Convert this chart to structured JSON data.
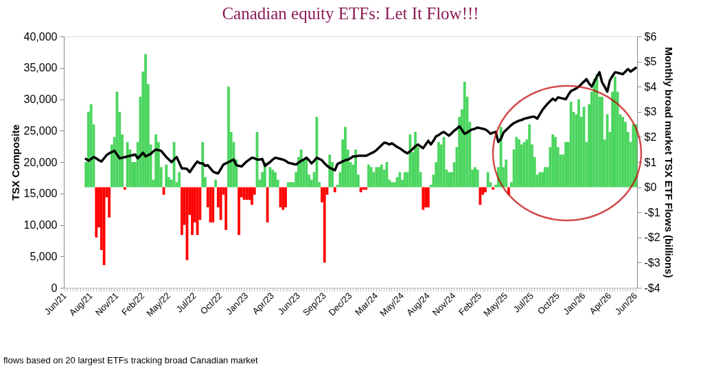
{
  "chart_data": {
    "type": "bar",
    "title": "Canadian equity ETFs:  Let It Flow!!!",
    "ylabel": "TSX Composite",
    "y2label": "Monthly broad market TSX ETF Flows (billions)",
    "annotations": [
      "flows based on 20 largest ETFs tracking broad Canadian market"
    ],
    "categories": [
      "Jun/21",
      null,
      null,
      null,
      null,
      null,
      null,
      null,
      null,
      null,
      "Aug/21",
      null,
      null,
      null,
      null,
      null,
      null,
      null,
      null,
      null,
      "Nov/21",
      null,
      null,
      null,
      null,
      null,
      null,
      null,
      null,
      null,
      "Feb/22",
      null,
      null,
      null,
      null,
      null,
      null,
      null,
      null,
      null,
      "May/22",
      null,
      null,
      null,
      null,
      null,
      null,
      null,
      null,
      null,
      "Jul/22",
      null,
      null,
      null,
      null,
      null,
      null,
      null,
      null,
      null,
      "Oct/22",
      null,
      null,
      null,
      null,
      null,
      null,
      null,
      null,
      null,
      "Jan/23",
      null,
      null,
      null,
      null,
      null,
      null,
      null,
      null,
      null,
      "Apr/23",
      null,
      null,
      null,
      null,
      null,
      null,
      null,
      null,
      null,
      "Jun/23",
      null,
      null,
      null,
      null,
      null,
      null,
      null,
      null,
      null,
      "Sep/23",
      null,
      null,
      null,
      null,
      null,
      null,
      null,
      null,
      null,
      "Dec/23",
      null,
      null,
      null,
      null,
      null,
      null,
      null,
      null,
      null,
      "Mar/24",
      null,
      null,
      null,
      null,
      null,
      null,
      null,
      null,
      null,
      "May/24",
      null,
      null,
      null,
      null,
      null,
      null,
      null,
      null,
      null,
      "Aug/24",
      null,
      null,
      null,
      null,
      null,
      null,
      null,
      null,
      null,
      "Nov/24",
      null,
      null,
      null,
      null,
      null,
      null,
      null,
      null,
      null,
      "Feb/25",
      null,
      null,
      null,
      null,
      null,
      null,
      null,
      null,
      null,
      "May/25",
      null,
      null,
      null,
      null,
      null,
      null,
      null,
      null,
      null,
      "Jul/25",
      null,
      null,
      null,
      null,
      null,
      null,
      null,
      null,
      null,
      "Oct/25",
      null,
      null,
      null,
      null,
      null,
      null,
      null,
      null,
      null,
      "Jan/26",
      null,
      null,
      null,
      null,
      null,
      null,
      null,
      null,
      null,
      "Apr/26",
      null,
      null,
      null,
      null,
      null,
      null,
      null,
      null,
      null,
      "Jun/26"
    ],
    "ylim": [
      0,
      40000
    ],
    "yticks": [
      0,
      {
        "value": 5000,
        "label": "5,000"
      },
      {
        "value": 10000,
        "label": "10,000"
      },
      {
        "value": 15000,
        "label": "15,000"
      },
      {
        "value": 20000,
        "label": "20,000"
      },
      {
        "value": 25000,
        "label": "25,000"
      },
      {
        "value": 30000,
        "label": "30,000"
      },
      {
        "value": 35000,
        "label": "35,000"
      },
      {
        "value": 40000,
        "label": "40,000"
      }
    ],
    "y2lim": [
      -4,
      6
    ],
    "y2ticks": [
      {
        "value": -4,
        "label": "-$4"
      },
      {
        "value": -3,
        "label": "-$3"
      },
      {
        "value": -2,
        "label": "-$2"
      },
      {
        "value": -1,
        "label": "-$1"
      },
      {
        "value": 0,
        "label": "$0"
      },
      {
        "value": 1,
        "label": "$1"
      },
      {
        "value": 2,
        "label": "$2"
      },
      {
        "value": 3,
        "label": "$3"
      },
      {
        "value": 4,
        "label": "$4"
      },
      {
        "value": 5,
        "label": "$5"
      },
      {
        "value": 6,
        "label": "$6"
      }
    ],
    "legend": false,
    "series": [
      {
        "axis": "y2",
        "color": "#4bd55f",
        "values": [
          null,
          null,
          null,
          null,
          null,
          null,
          null,
          null,
          1.0,
          3.0,
          3.3,
          2.5,
          null,
          null,
          null,
          null,
          null,
          null,
          1.7,
          2.0,
          3.8,
          3.0,
          2.1,
          null,
          1.8,
          1.5,
          1.0,
          1.0,
          1.8,
          3.6,
          4.6,
          5.3,
          4.1,
          1.7,
          0.3,
          2.1,
          1.8,
          0.8,
          null,
          0.9,
          0.4,
          0.3,
          1.8,
          0.2,
          0.6,
          null,
          null,
          null,
          null,
          null,
          null,
          null,
          null,
          1.8,
          0.4,
          null,
          null,
          null,
          0.3,
          null,
          null,
          null,
          null,
          4.0,
          2.2,
          1.8,
          1.1,
          null,
          null,
          null,
          null,
          null,
          null,
          null,
          2.2,
          0.3,
          0.6,
          1.0,
          null,
          0.8,
          0.7,
          0.6,
          0.3,
          null,
          null,
          null,
          0.2,
          0.2,
          0.2,
          0.6,
          1.2,
          1.5,
          1.1,
          1.2,
          0.5,
          0.3,
          0.6,
          2.8,
          0.2,
          null,
          null,
          null,
          1.3,
          1.0,
          null,
          0.1,
          0.6,
          1.9,
          2.4,
          1.5,
          1.0,
          0.9,
          1.5,
          0.5,
          null,
          null,
          null,
          0.9,
          0.8,
          0.6,
          0.8,
          0.8,
          0.9,
          0.7,
          1.0,
          0.3,
          0.2,
          0.2,
          0.4,
          0.6,
          0.3,
          0.6,
          0.6,
          2.1,
          1.4,
          2.2,
          1.6,
          0.6,
          null,
          null,
          null,
          0.1,
          0.5,
          1.0,
          1.8,
          1.7,
          2.0,
          0.7,
          0.6,
          0.6,
          1.0,
          1.6,
          2.8,
          3.1,
          4.2,
          3.6,
          2.6,
          0.7,
          0.8,
          0.7,
          null,
          null,
          null,
          0.6,
          0.2,
          null,
          0.1,
          0.8,
          2.4,
          0.8,
          1.1,
          null,
          0.2,
          1.5,
          2.0,
          1.9,
          1.7,
          1.8,
          1.9,
          2.5,
          1.7,
          1.2,
          0.5,
          0.6,
          0.6,
          0.8,
          0.8,
          1.6,
          2.1,
          2.0,
          1.6,
          1.3,
          1.3,
          1.8,
          1.8,
          3.4,
          3.0,
          2.9,
          3.5,
          2.8,
          3.2,
          1.8,
          3.3,
          3.8,
          4.3,
          4.5,
          3.6,
          3.6,
          1.9,
          2.9,
          2.2,
          3.8,
          4.4,
          3.8,
          2.9,
          2.8,
          2.6,
          2.2,
          1.8,
          2.5,
          2.5
        ]
      },
      {
        "axis": "y2",
        "color": "#ff0000",
        "values": [
          null,
          null,
          null,
          null,
          null,
          null,
          null,
          null,
          null,
          null,
          null,
          null,
          -2.0,
          -1.6,
          -2.5,
          -3.1,
          -0.4,
          -1.2,
          null,
          null,
          null,
          null,
          null,
          -0.1,
          null,
          null,
          null,
          null,
          null,
          null,
          null,
          null,
          null,
          null,
          null,
          null,
          null,
          null,
          -0.3,
          null,
          null,
          null,
          null,
          null,
          null,
          -1.9,
          -1.5,
          -2.9,
          -1.1,
          -1.9,
          -1.4,
          -1.9,
          -1.3,
          null,
          null,
          -0.8,
          -1.4,
          -1.4,
          null,
          -0.8,
          -1.3,
          -0.3,
          -1.7,
          null,
          null,
          null,
          null,
          -1.9,
          -0.4,
          -0.5,
          -0.5,
          -0.5,
          -0.7,
          -0.3,
          null,
          null,
          null,
          null,
          -1.4,
          null,
          null,
          null,
          null,
          -0.8,
          -0.9,
          -0.8,
          null,
          null,
          null,
          null,
          null,
          null,
          null,
          null,
          null,
          null,
          null,
          null,
          null,
          -0.6,
          -3.0,
          -0.3,
          null,
          null,
          -0.2,
          null,
          null,
          null,
          null,
          null,
          null,
          null,
          null,
          null,
          -0.2,
          -0.1,
          -0.1,
          null,
          null,
          null,
          null,
          null,
          null,
          null,
          null,
          null,
          null,
          null,
          null,
          null,
          null,
          null,
          null,
          null,
          null,
          null,
          null,
          null,
          -0.9,
          -0.8,
          -0.8,
          null,
          null,
          null,
          null,
          null,
          null,
          null,
          null,
          null,
          null,
          null,
          null,
          null,
          null,
          null,
          null,
          null,
          null,
          null,
          -0.7,
          -0.3,
          -0.2,
          null,
          null,
          -0.1,
          null,
          null,
          null,
          null,
          null,
          -0.3,
          null,
          null,
          null,
          null,
          null,
          null,
          null,
          null,
          null,
          null,
          null,
          null,
          null,
          null,
          null,
          null,
          null,
          null,
          null,
          null,
          null,
          null,
          null,
          null,
          null,
          null,
          null,
          null,
          null,
          null,
          null,
          null,
          null,
          null,
          null,
          null,
          null,
          null,
          null,
          null,
          null,
          null,
          null,
          null,
          null,
          null,
          null,
          null,
          null
        ]
      },
      {
        "type": "line",
        "color": "#000000",
        "values": [
          null,
          null,
          null,
          null,
          null,
          null,
          null,
          null,
          20500,
          20200,
          20500,
          20800,
          20600,
          20300,
          20100,
          20600,
          21100,
          21400,
          21600,
          21800,
          21200,
          20600,
          20700,
          20800,
          20900,
          21000,
          21100,
          21200,
          20600,
          21000,
          21500,
          20900,
          21100,
          21300,
          21700,
          22000,
          21900,
          21800,
          21300,
          20800,
          20400,
          20000,
          20400,
          20800,
          19900,
          19000,
          19000,
          18900,
          18400,
          19000,
          19600,
          20100,
          19800,
          19800,
          19400,
          19500,
          19000,
          18500,
          18300,
          18200,
          18900,
          19600,
          19800,
          20000,
          20200,
          20400,
          19500,
          19400,
          19300,
          19700,
          20100,
          20400,
          20700,
          20600,
          20400,
          20400,
          20500,
          19400,
          19700,
          20000,
          20400,
          20700,
          20600,
          20500,
          20400,
          20200,
          19900,
          19800,
          19700,
          19600,
          19900,
          20200,
          20400,
          20700,
          20300,
          19800,
          20200,
          20700,
          20500,
          20300,
          19800,
          19400,
          19100,
          18900,
          18700,
          19700,
          19900,
          20100,
          20300,
          20400,
          20600,
          20900,
          20900,
          21000,
          21000,
          21000,
          21000,
          21200,
          21400,
          21600,
          21900,
          22300,
          22700,
          23100,
          23000,
          22800,
          23000,
          22700,
          22400,
          22200,
          21900,
          21600,
          21400,
          21700,
          22100,
          22500,
          22800,
          22500,
          22200,
          22800,
          23400,
          22800,
          23400,
          24100,
          24300,
          24600,
          24800,
          24500,
          24200,
          24600,
          25000,
          25300,
          25700,
          25100,
          24500,
          24700,
          25000,
          25200,
          25300,
          25500,
          25400,
          25300,
          25200,
          24900,
          24500,
          24700,
          24800,
          23200,
          23700,
          24700,
          25100,
          25500,
          25900,
          26200,
          26400,
          26600,
          26700,
          26900,
          27000,
          27100,
          27200,
          27200,
          26900,
          27600,
          28300,
          28800,
          29300,
          29700,
          30100,
          29800,
          30300,
          30200,
          30100,
          30000,
          30700,
          31300,
          31500,
          31700,
          32000,
          32400,
          32800,
          33200,
          32500,
          32000,
          32800,
          33600,
          34300,
          32700,
          32000,
          31200,
          33000,
          33700,
          34300,
          34200,
          34100,
          34000,
          34400,
          34800,
          34400,
          34700,
          35000
        ]
      }
    ]
  }
}
